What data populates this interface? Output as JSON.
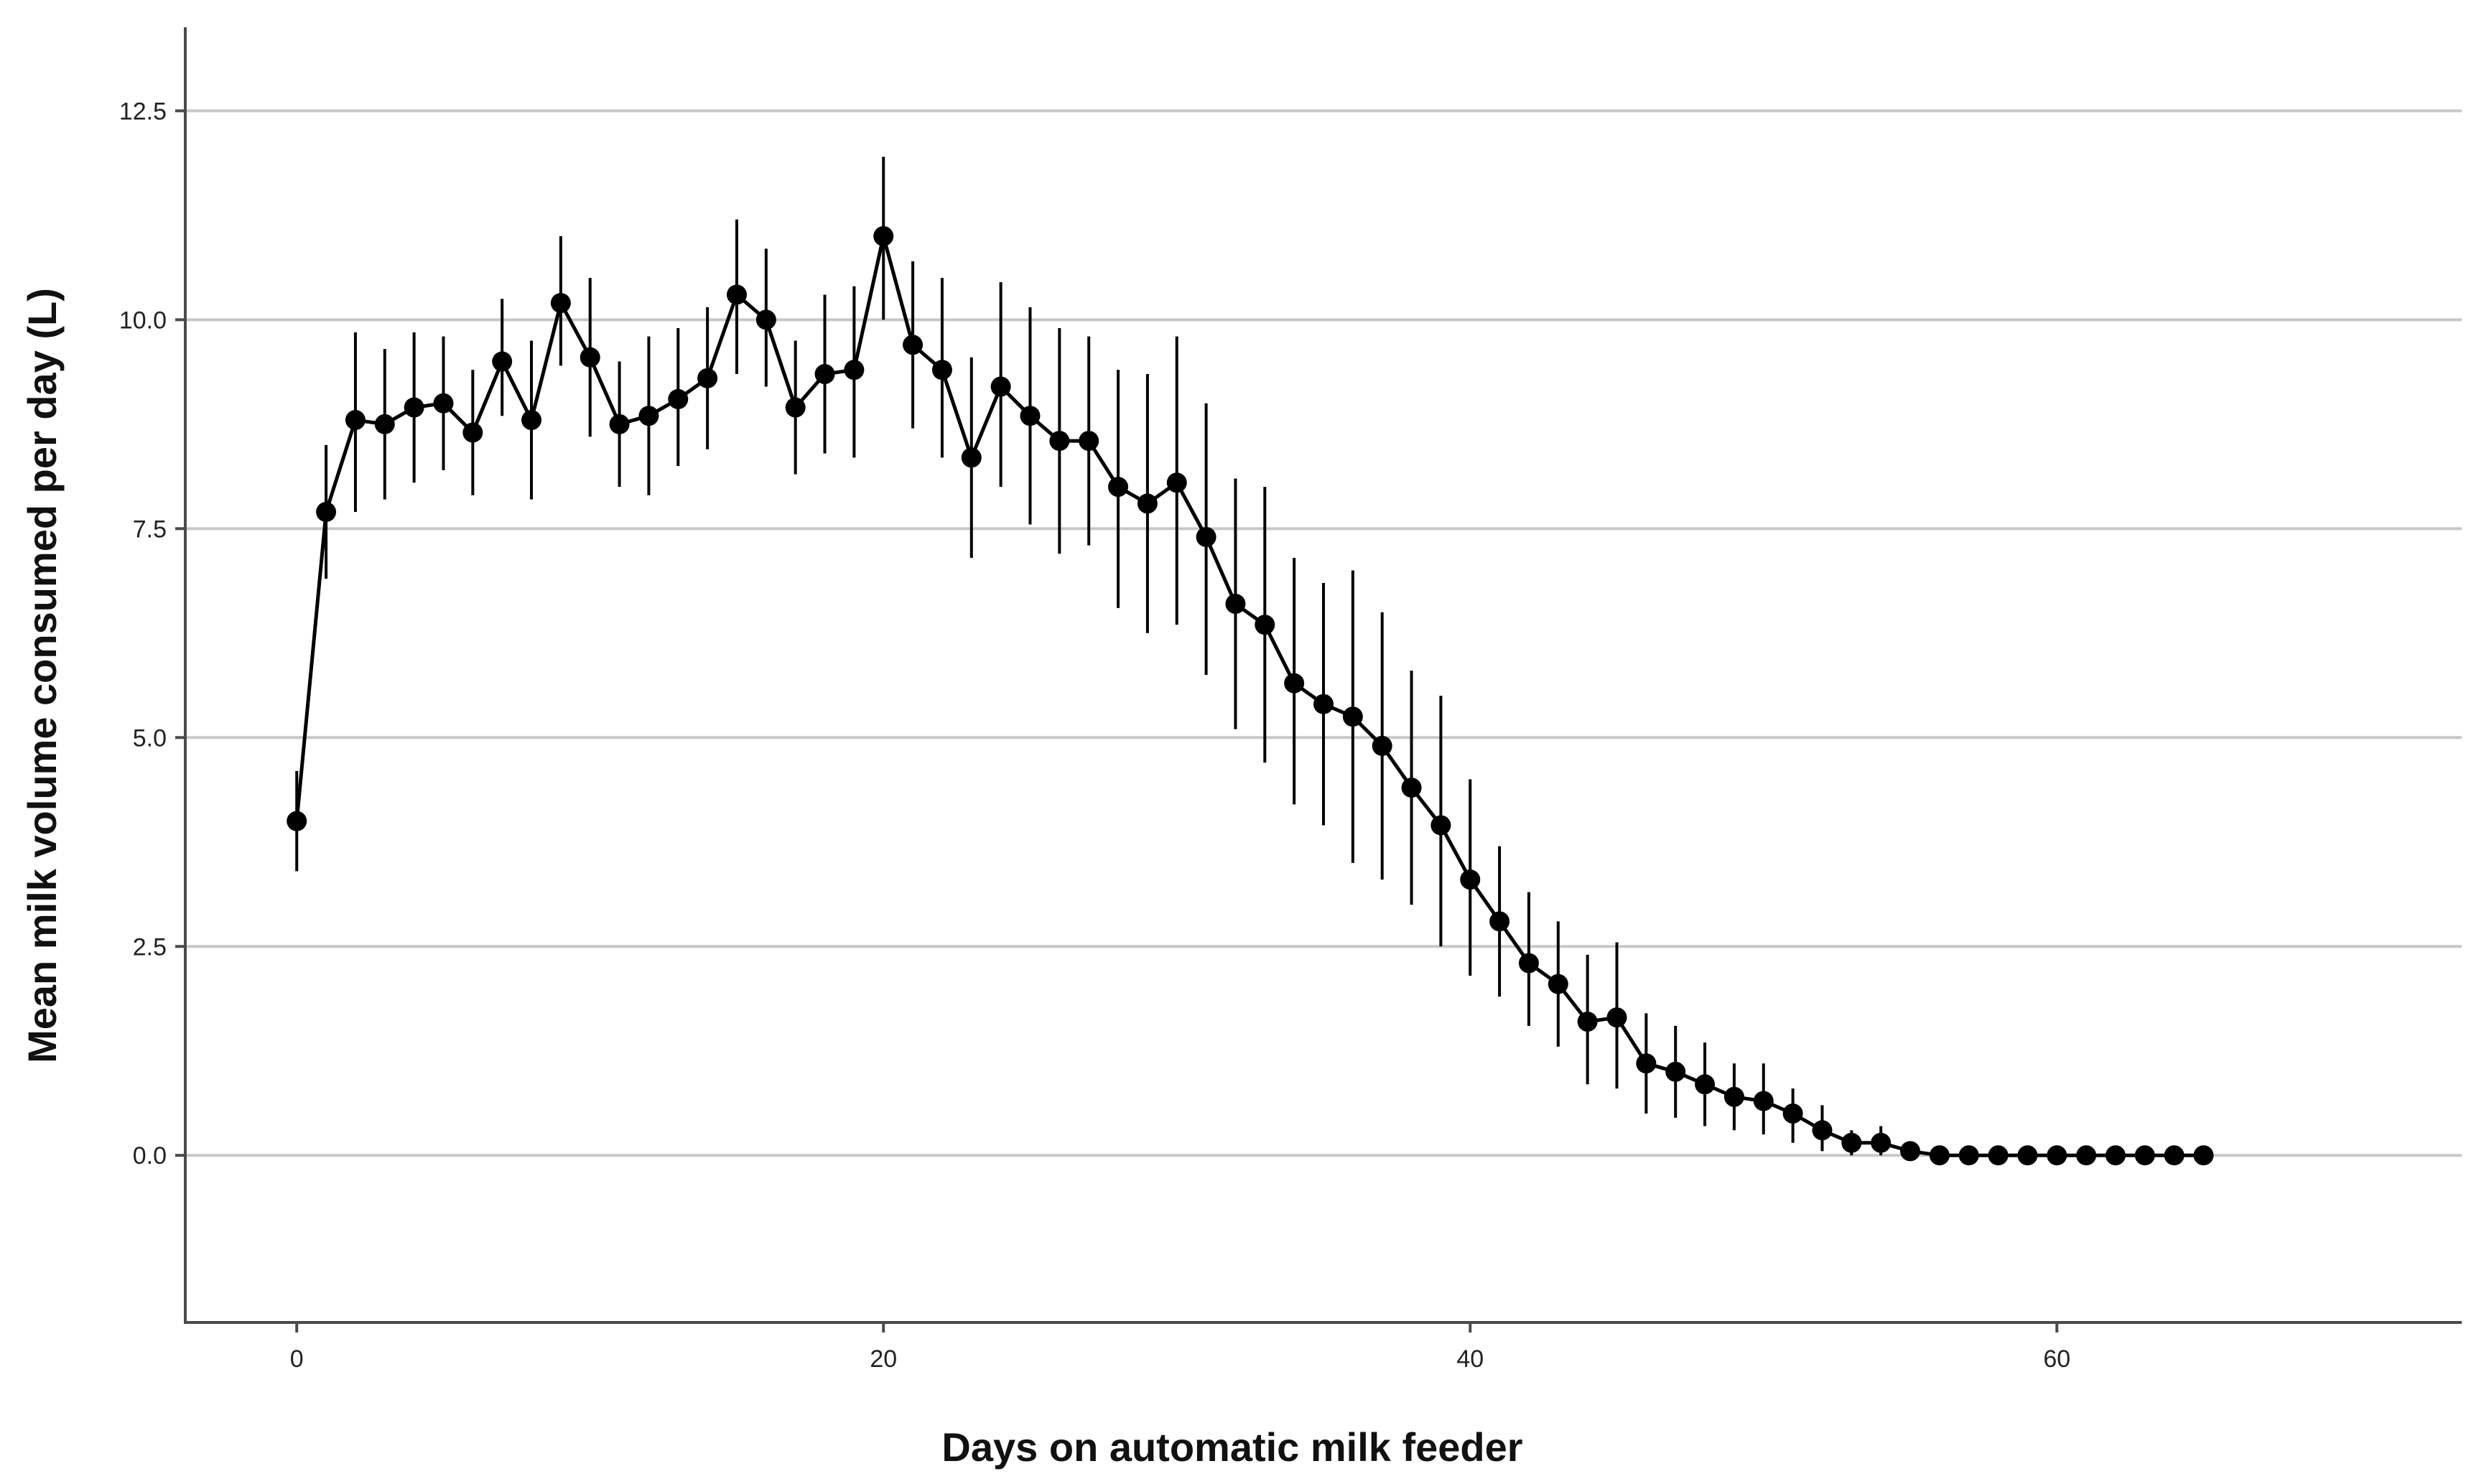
{
  "chart_data": {
    "type": "line",
    "title": "",
    "xlabel": "Days on automatic milk feeder",
    "ylabel": "Mean milk volume consumed per day (L)",
    "xlim": [
      -3.8,
      73.8
    ],
    "ylim": [
      -2.0,
      13.5
    ],
    "x_ticks": [
      0,
      20,
      40,
      60
    ],
    "x_tick_labels": [
      "0",
      "20",
      "40",
      "60"
    ],
    "y_ticks": [
      0,
      2.5,
      5.0,
      7.5,
      10.0,
      12.5
    ],
    "y_tick_labels": [
      "0.0",
      "2.5",
      "5.0",
      "7.5",
      "10.0",
      "12.5"
    ],
    "grid": "horizontal",
    "colors": {
      "series": "#000000",
      "grid": "#c8c8c8",
      "axis": "#4a4a4a"
    },
    "series": [
      {
        "name": "Mean milk volume",
        "x": [
          0,
          1,
          2,
          3,
          4,
          5,
          6,
          7,
          8,
          9,
          10,
          11,
          12,
          13,
          14,
          15,
          16,
          17,
          18,
          19,
          20,
          21,
          22,
          23,
          24,
          25,
          26,
          27,
          28,
          29,
          30,
          31,
          32,
          33,
          34,
          35,
          36,
          37,
          38,
          39,
          40,
          41,
          42,
          43,
          44,
          45,
          46,
          47,
          48,
          49,
          50,
          51,
          52,
          53,
          54,
          55,
          56,
          57,
          58,
          59,
          60,
          61,
          62,
          63,
          64,
          65
        ],
        "y": [
          4.0,
          7.7,
          8.8,
          8.75,
          8.95,
          9.0,
          8.65,
          9.5,
          8.8,
          10.2,
          9.55,
          8.75,
          8.85,
          9.05,
          9.3,
          10.3,
          10.0,
          8.95,
          9.35,
          9.4,
          11.0,
          9.7,
          9.4,
          8.35,
          9.2,
          8.85,
          8.55,
          8.55,
          8.0,
          7.8,
          8.05,
          7.4,
          6.6,
          6.35,
          5.65,
          5.4,
          5.25,
          4.9,
          4.4,
          3.95,
          3.3,
          2.8,
          2.3,
          2.05,
          1.6,
          1.65,
          1.1,
          1.0,
          0.85,
          0.7,
          0.65,
          0.5,
          0.3,
          0.15,
          0.15,
          0.05,
          0,
          0,
          0,
          0,
          0,
          0,
          0,
          0,
          0,
          0
        ],
        "err_low": [
          3.4,
          6.9,
          7.7,
          7.85,
          8.05,
          8.2,
          7.9,
          8.85,
          7.85,
          9.45,
          8.6,
          8.0,
          7.9,
          8.25,
          8.45,
          9.35,
          9.2,
          8.15,
          8.4,
          8.35,
          10.0,
          8.7,
          8.35,
          7.15,
          8.0,
          7.55,
          7.2,
          7.3,
          6.55,
          6.25,
          6.35,
          5.75,
          5.1,
          4.7,
          4.2,
          3.95,
          3.5,
          3.3,
          3.0,
          2.5,
          2.15,
          1.9,
          1.55,
          1.3,
          0.85,
          0.8,
          0.5,
          0.45,
          0.35,
          0.3,
          0.25,
          0.15,
          0.05,
          0,
          0,
          0,
          0,
          0,
          0,
          0,
          0,
          0,
          0,
          0,
          0,
          0
        ],
        "err_high": [
          4.6,
          8.5,
          9.85,
          9.65,
          9.85,
          9.8,
          9.4,
          10.25,
          9.75,
          11.0,
          10.5,
          9.5,
          9.8,
          9.9,
          10.15,
          11.2,
          10.85,
          9.75,
          10.3,
          10.4,
          11.95,
          10.7,
          10.5,
          9.55,
          10.45,
          10.15,
          9.9,
          9.8,
          9.4,
          9.35,
          9.8,
          9.0,
          8.1,
          8.0,
          7.15,
          6.85,
          7.0,
          6.5,
          5.8,
          5.5,
          4.5,
          3.7,
          3.15,
          2.8,
          2.4,
          2.55,
          1.7,
          1.55,
          1.35,
          1.1,
          1.1,
          0.8,
          0.6,
          0.3,
          0.35,
          0.15,
          0,
          0,
          0,
          0,
          0,
          0,
          0,
          0,
          0,
          0
        ]
      }
    ]
  }
}
